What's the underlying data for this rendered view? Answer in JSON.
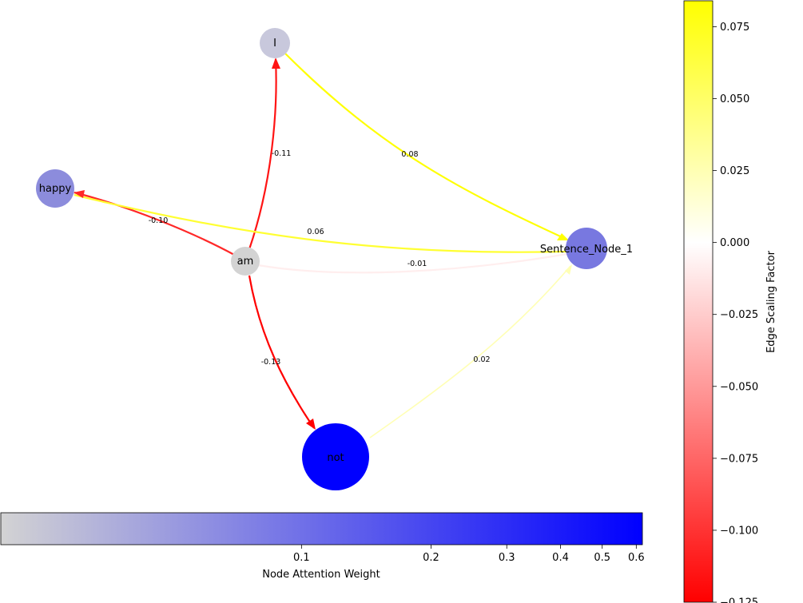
{
  "chart_data": {
    "type": "network-graph",
    "nodes": [
      {
        "id": "I",
        "label": "I",
        "attention": 0.02,
        "color": "#c8c8dc"
      },
      {
        "id": "happy",
        "label": "happy",
        "attention": 0.12,
        "color": "#8c8cdc"
      },
      {
        "id": "am",
        "label": "am",
        "attention": 0.02,
        "color": "#d3d3d3"
      },
      {
        "id": "Sentence_Node_1",
        "label": "Sentence_Node_1",
        "attention": 0.18,
        "color": "#7878e0"
      },
      {
        "id": "not",
        "label": "not",
        "attention": 0.62,
        "color": "#0000ff"
      }
    ],
    "edges": [
      {
        "source": "am",
        "target": "I",
        "value": -0.11,
        "label": "-0.11",
        "color": "#ff1414"
      },
      {
        "source": "I",
        "target": "Sentence_Node_1",
        "value": 0.08,
        "label": "0.08",
        "color": "#ffff00"
      },
      {
        "source": "am",
        "target": "happy",
        "value": -0.1,
        "label": "-0.10",
        "color": "#ff2828"
      },
      {
        "source": "Sentence_Node_1",
        "target": "happy",
        "value": 0.06,
        "label": "0.06",
        "color": "#ffff32"
      },
      {
        "source": "am",
        "target": "Sentence_Node_1",
        "value": -0.01,
        "label": "-0.01",
        "color": "#ffeeee"
      },
      {
        "source": "am",
        "target": "not",
        "value": -0.13,
        "label": "-0.13",
        "color": "#ff0000"
      },
      {
        "source": "not",
        "target": "Sentence_Node_1",
        "value": 0.02,
        "label": "0.02",
        "color": "#ffffb4"
      }
    ],
    "edge_colorbar": {
      "label": "Edge Scaling Factor",
      "range": [
        -0.125,
        0.084
      ],
      "ticks": [
        0.075,
        0.05,
        0.025,
        0.0,
        -0.025,
        -0.05,
        -0.075,
        -0.1,
        -0.125
      ],
      "tick_labels": [
        "0.075",
        "0.050",
        "0.025",
        "0.000",
        "−0.025",
        "−0.050",
        "−0.075",
        "−0.100",
        "−0.125"
      ],
      "colors": [
        "#ff0000",
        "#ffffff",
        "#ffff00"
      ]
    },
    "node_colorbar": {
      "label": "Node Attention Weight",
      "scale": "log",
      "range": [
        0.02,
        0.62
      ],
      "ticks": [
        0.1,
        0.2,
        0.3,
        0.4,
        0.5,
        0.6
      ],
      "tick_labels": [
        "0.1",
        "0.2",
        "0.3",
        "0.4",
        "0.5",
        "0.6"
      ],
      "colors": [
        "#d3d3d3",
        "#0000ff"
      ]
    }
  }
}
